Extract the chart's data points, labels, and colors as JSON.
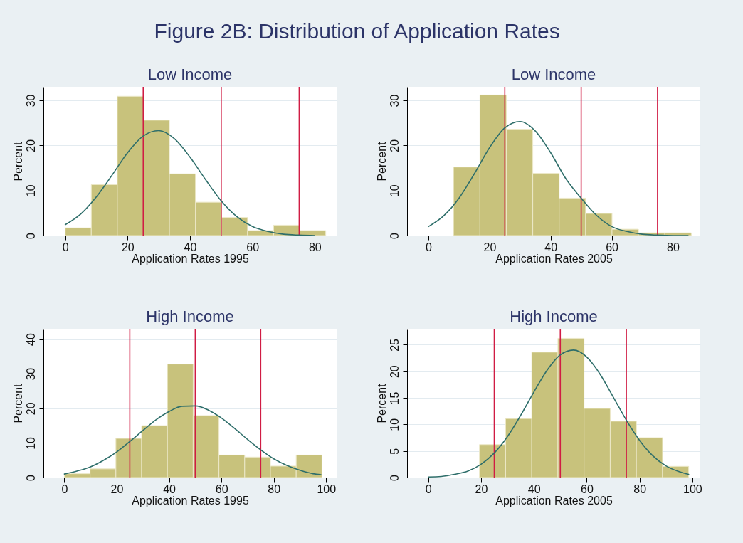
{
  "chart_data": [
    {
      "type": "histogram",
      "title": "Figure 2B: Distribution of Application Rates",
      "subtitle": "Low Income",
      "xlabel": "Application Rates 1995",
      "ylabel": "Percent",
      "xlim": [
        -7,
        87
      ],
      "ylim": [
        0,
        33
      ],
      "xticks": [
        0,
        20,
        40,
        60,
        80
      ],
      "yticks": [
        0,
        10,
        20,
        30
      ],
      "grid": "y",
      "series": [
        {
          "color": "#c8c27c",
          "bins": [
            0,
            8.35,
            16.7,
            25.05,
            33.4,
            41.75,
            50.1,
            58.45,
            66.8,
            75.15,
            83.5
          ],
          "values": [
            1.7,
            11.3,
            30.9,
            25.6,
            13.7,
            7.4,
            4.0,
            1.1,
            2.3,
            1.1
          ]
        },
        {
          "type": "line",
          "color": "#2e6e6a",
          "x": [
            0,
            5,
            10,
            15,
            20,
            25,
            30,
            35,
            40,
            45,
            50,
            55,
            60,
            65,
            70,
            75,
            80
          ],
          "values": [
            2.4,
            4.8,
            8.6,
            13.4,
            18.4,
            22.1,
            23.3,
            21.5,
            17.4,
            12.4,
            7.7,
            4.2,
            2.0,
            0.9,
            0.3,
            0.1,
            0.0
          ]
        }
      ],
      "ref_lines": [
        {
          "axis": "x",
          "value": 25,
          "color": "#d01c44"
        },
        {
          "axis": "x",
          "value": 50,
          "color": "#d01c44"
        },
        {
          "axis": "x",
          "value": 75,
          "color": "#d01c44"
        }
      ]
    },
    {
      "type": "histogram",
      "subtitle": "Low Income",
      "xlabel": "Application Rates 2005",
      "ylabel": "Percent",
      "xlim": [
        -7,
        89
      ],
      "ylim": [
        0,
        33
      ],
      "xticks": [
        0,
        20,
        40,
        60,
        80
      ],
      "yticks": [
        0,
        10,
        20,
        30
      ],
      "grid": "y",
      "series": [
        {
          "color": "#c8c27c",
          "bins": [
            8.2,
            16.85,
            25.5,
            34.15,
            42.8,
            51.45,
            60.1,
            68.75,
            77.4,
            86.05
          ],
          "values": [
            15.2,
            31.2,
            23.6,
            13.8,
            8.3,
            4.9,
            1.4,
            0.6,
            0.6
          ]
        },
        {
          "type": "line",
          "color": "#2e6e6a",
          "x": [
            0,
            5,
            10,
            15,
            20,
            25,
            30,
            35,
            40,
            45,
            50,
            55,
            60,
            65,
            70,
            75,
            80,
            85
          ],
          "values": [
            2.0,
            4.4,
            8.3,
            13.7,
            19.5,
            23.9,
            25.3,
            23.2,
            18.4,
            12.6,
            8.3,
            4.5,
            2.0,
            0.9,
            0.3,
            0.1,
            0.0,
            0.0
          ]
        }
      ],
      "ref_lines": [
        {
          "axis": "x",
          "value": 25,
          "color": "#d01c44"
        },
        {
          "axis": "x",
          "value": 50,
          "color": "#d01c44"
        },
        {
          "axis": "x",
          "value": 75,
          "color": "#d01c44"
        }
      ]
    },
    {
      "type": "histogram",
      "subtitle": "High Income",
      "xlabel": "Application Rates 1995",
      "ylabel": "Percent",
      "xlim": [
        -8,
        104
      ],
      "ylim": [
        0,
        43
      ],
      "xticks": [
        0,
        20,
        40,
        60,
        80,
        100
      ],
      "yticks": [
        0,
        10,
        20,
        30,
        40
      ],
      "grid": "y",
      "series": [
        {
          "color": "#c8c27c",
          "bins": [
            0,
            9.84,
            19.68,
            29.52,
            39.36,
            49.2,
            59.04,
            68.88,
            78.72,
            88.56,
            98.4
          ],
          "values": [
            1.1,
            2.5,
            11.3,
            15.0,
            32.8,
            17.9,
            6.5,
            5.9,
            3.3,
            6.5
          ]
        },
        {
          "type": "line",
          "color": "#2e6e6a",
          "x": [
            0,
            5,
            10,
            15,
            20,
            25,
            30,
            35,
            40,
            45,
            50,
            55,
            60,
            65,
            70,
            75,
            80,
            85,
            90,
            95,
            98
          ],
          "values": [
            1.0,
            1.9,
            3.1,
            5.0,
            7.4,
            10.4,
            13.6,
            16.7,
            19.1,
            20.6,
            20.7,
            19.5,
            17.2,
            14.2,
            11.0,
            8.0,
            5.4,
            3.5,
            2.1,
            1.1,
            0.8
          ]
        }
      ],
      "ref_lines": [
        {
          "axis": "x",
          "value": 25,
          "color": "#d01c44"
        },
        {
          "axis": "x",
          "value": 50,
          "color": "#d01c44"
        },
        {
          "axis": "x",
          "value": 75,
          "color": "#d01c44"
        }
      ]
    },
    {
      "type": "histogram",
      "subtitle": "High Income",
      "xlabel": "Application Rates 2005",
      "ylabel": "Percent",
      "xlim": [
        -8,
        103
      ],
      "ylim": [
        0,
        28
      ],
      "xticks": [
        0,
        20,
        40,
        60,
        80,
        100
      ],
      "yticks": [
        0,
        5,
        10,
        15,
        20,
        25
      ],
      "grid": "y",
      "series": [
        {
          "color": "#c8c27c",
          "bins": [
            19.4,
            29.3,
            39.2,
            49.1,
            59.0,
            68.9,
            78.8,
            88.7,
            98.6
          ],
          "values": [
            6.2,
            11.1,
            23.6,
            26.2,
            13.0,
            10.6,
            7.5,
            2.1
          ]
        },
        {
          "type": "line",
          "color": "#2e6e6a",
          "x": [
            0,
            5,
            10,
            15,
            20,
            25,
            30,
            35,
            40,
            45,
            50,
            55,
            60,
            65,
            70,
            75,
            80,
            85,
            90,
            95,
            98.6
          ],
          "values": [
            0.1,
            0.2,
            0.6,
            1.2,
            2.5,
            4.6,
            7.7,
            11.7,
            16.1,
            20.2,
            23.1,
            24.0,
            22.7,
            19.5,
            15.2,
            10.8,
            7.0,
            4.1,
            2.2,
            1.1,
            0.6
          ]
        }
      ],
      "ref_lines": [
        {
          "axis": "x",
          "value": 25,
          "color": "#d01c44"
        },
        {
          "axis": "x",
          "value": 50,
          "color": "#d01c44"
        },
        {
          "axis": "x",
          "value": 75,
          "color": "#d01c44"
        }
      ]
    }
  ]
}
